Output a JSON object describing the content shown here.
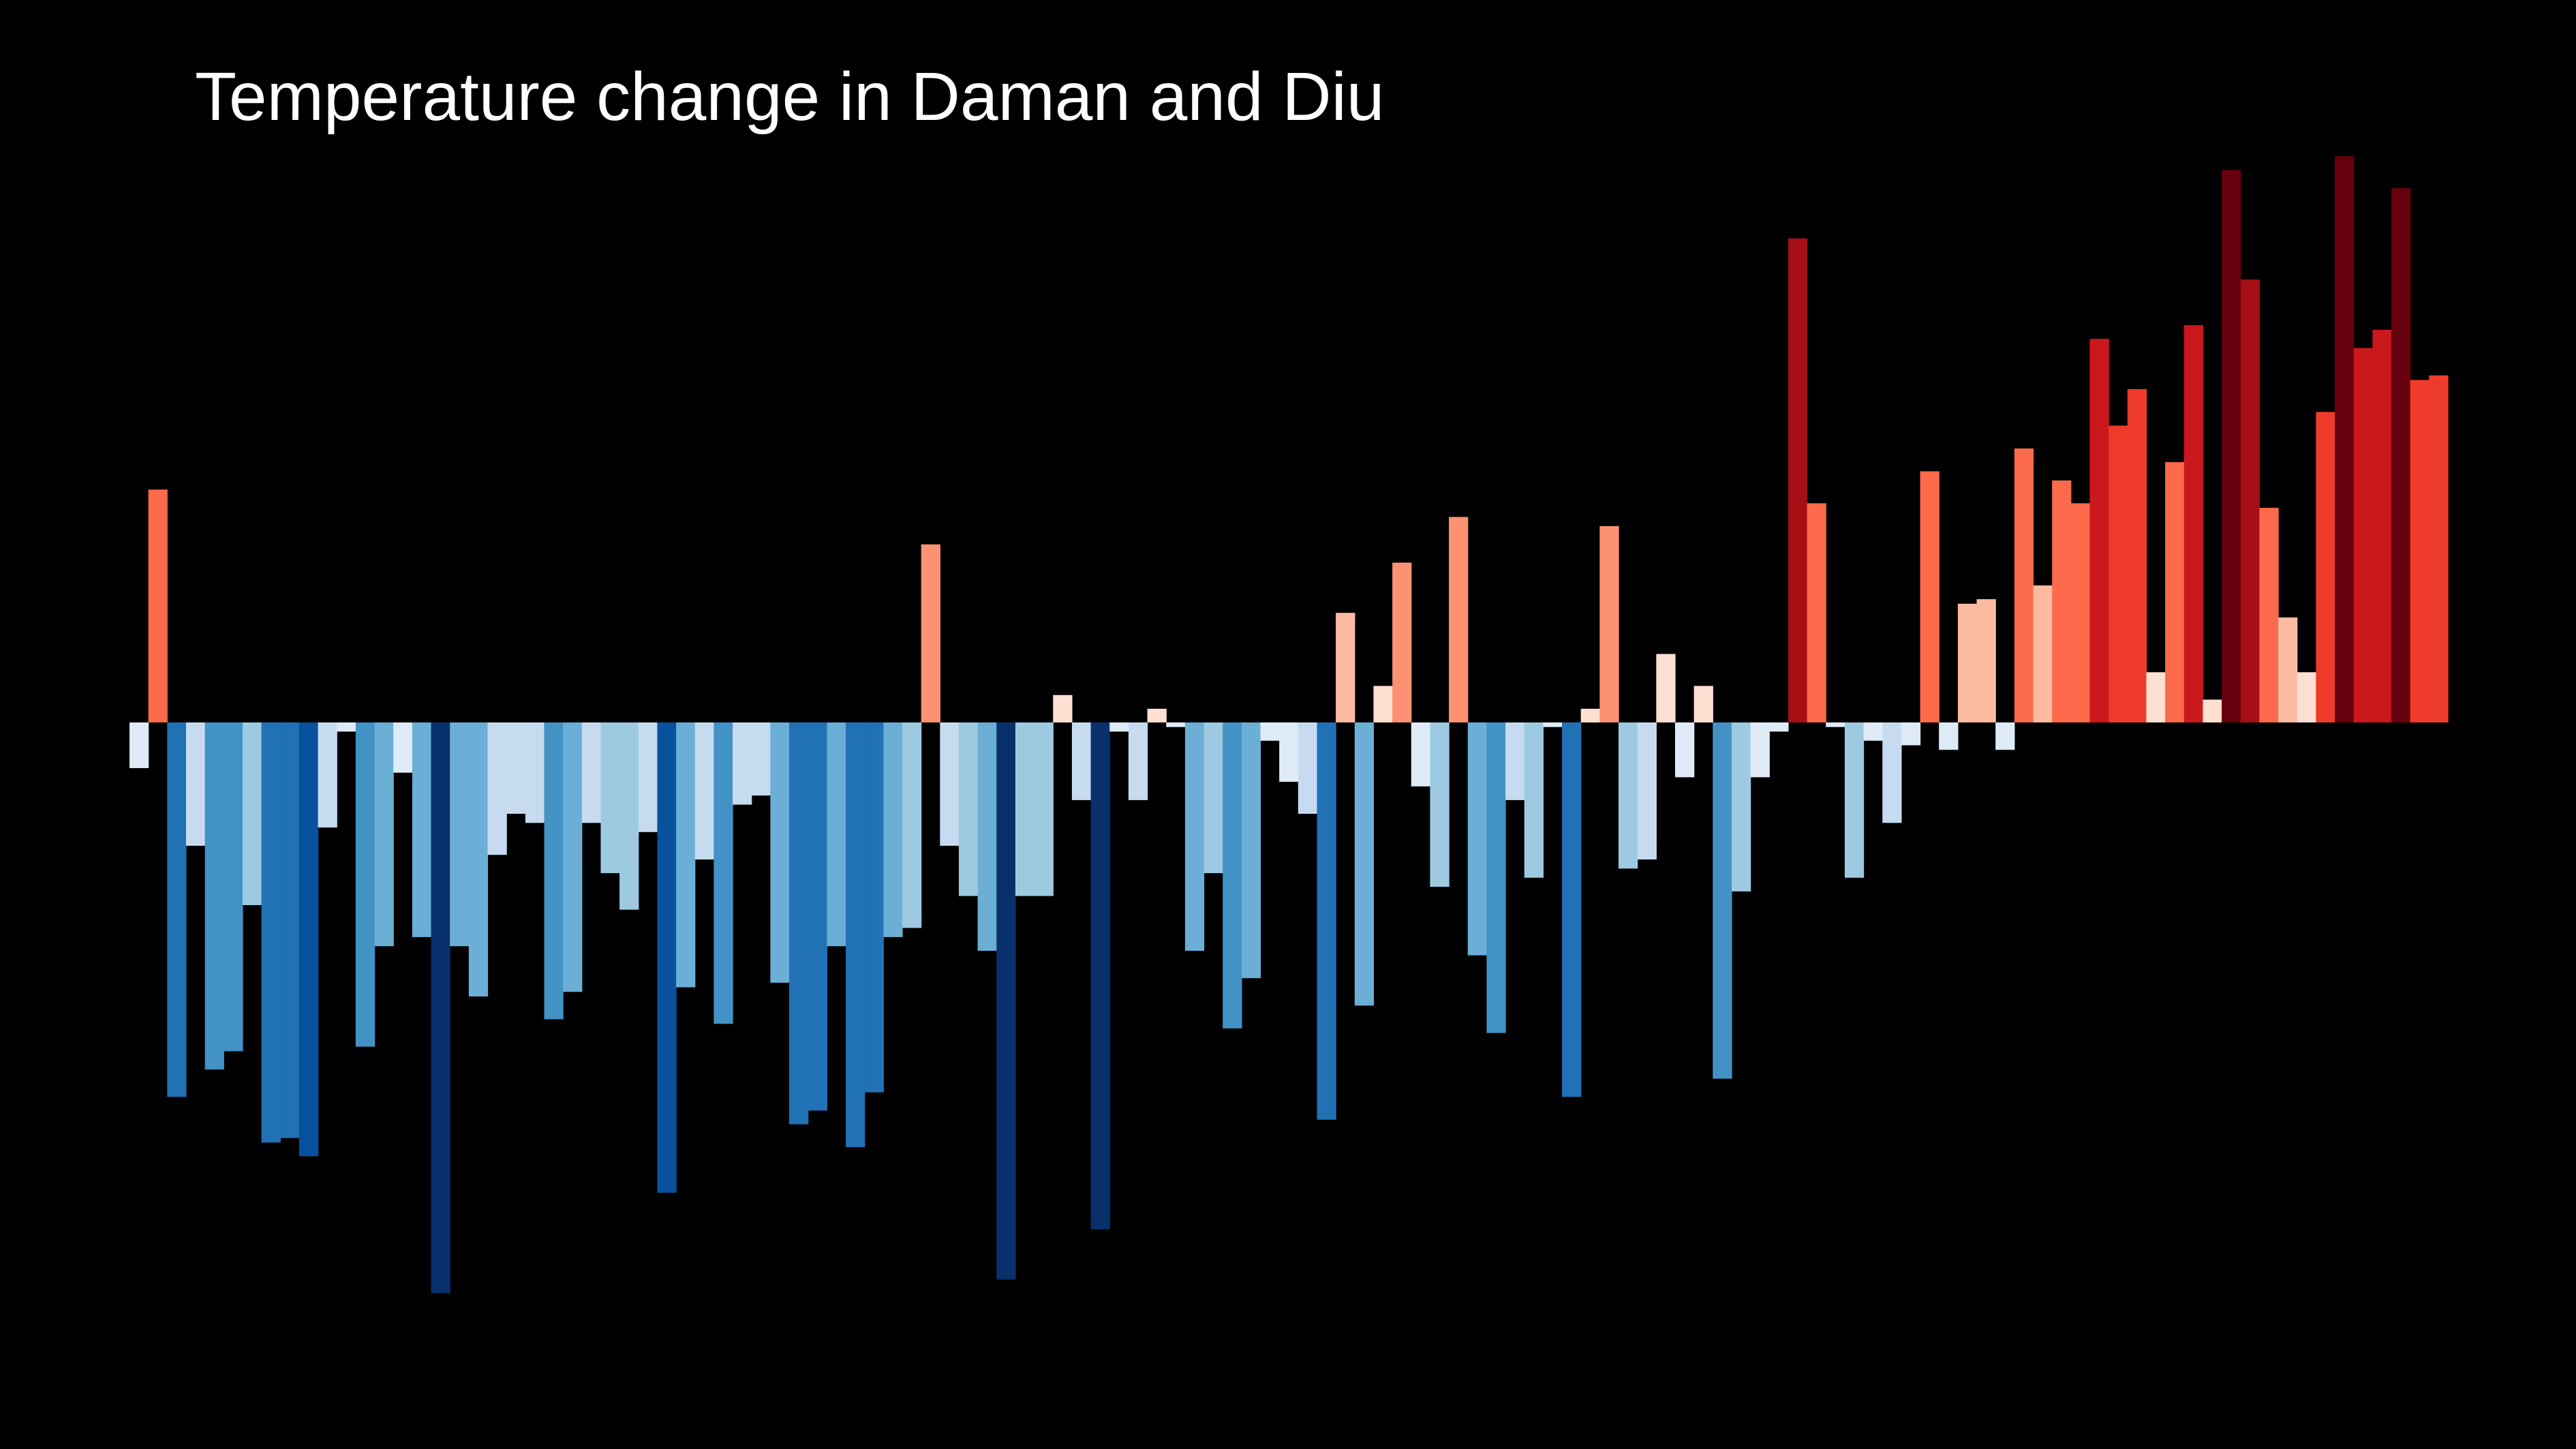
{
  "chart_data": {
    "type": "bar",
    "title": "Temperature change in Daman and Diu",
    "xlabel": "",
    "ylabel": "",
    "grid": false,
    "legend": "none",
    "background": "#000000",
    "color_scale": [
      "#08306b",
      "#08519c",
      "#2171b5",
      "#4292c6",
      "#6baed6",
      "#9ecae1",
      "#c6dbef",
      "#deebf7",
      "#fee0d2",
      "#fcbba1",
      "#fc9272",
      "#fb6a4a",
      "#ef3b2c",
      "#cb181d",
      "#a50f15",
      "#67000d"
    ],
    "ylim": [
      -1.25,
      1.25
    ],
    "values": [
      -0.1,
      0.51,
      -0.82,
      -0.27,
      -0.76,
      -0.72,
      -0.4,
      -0.92,
      -0.91,
      -0.95,
      -0.23,
      -0.02,
      -0.71,
      -0.49,
      -0.11,
      -0.47,
      -1.25,
      -0.49,
      -0.6,
      -0.29,
      -0.2,
      -0.22,
      -0.65,
      -0.59,
      -0.22,
      -0.33,
      -0.41,
      -0.24,
      -1.03,
      -0.58,
      -0.3,
      -0.66,
      -0.18,
      -0.16,
      -0.57,
      -0.88,
      -0.85,
      -0.49,
      -0.93,
      -0.81,
      -0.47,
      -0.45,
      0.39,
      -0.27,
      -0.38,
      -0.5,
      -1.22,
      -0.38,
      -0.38,
      0.06,
      -0.17,
      -1.11,
      -0.02,
      -0.17,
      0.03,
      -0.01,
      -0.5,
      -0.33,
      -0.67,
      -0.56,
      -0.04,
      -0.13,
      -0.2,
      -0.87,
      0.24,
      -0.62,
      0.08,
      0.35,
      -0.14,
      -0.36,
      0.45,
      -0.51,
      -0.68,
      -0.17,
      -0.34,
      -0.01,
      -0.82,
      0.03,
      0.43,
      -0.32,
      -0.3,
      0.15,
      -0.12,
      0.08,
      -0.78,
      -0.37,
      -0.12,
      -0.02,
      1.06,
      0.48,
      -0.01,
      -0.34,
      -0.04,
      -0.22,
      -0.05,
      0.55,
      -0.06,
      0.26,
      0.27,
      -0.06,
      0.6,
      0.3,
      0.53,
      0.48,
      0.84,
      0.65,
      0.73,
      0.11,
      0.57,
      0.87,
      0.05,
      1.21,
      0.97,
      0.47,
      0.23,
      0.11,
      0.68,
      1.24,
      0.82,
      0.86,
      1.17,
      0.75,
      0.76
    ]
  }
}
